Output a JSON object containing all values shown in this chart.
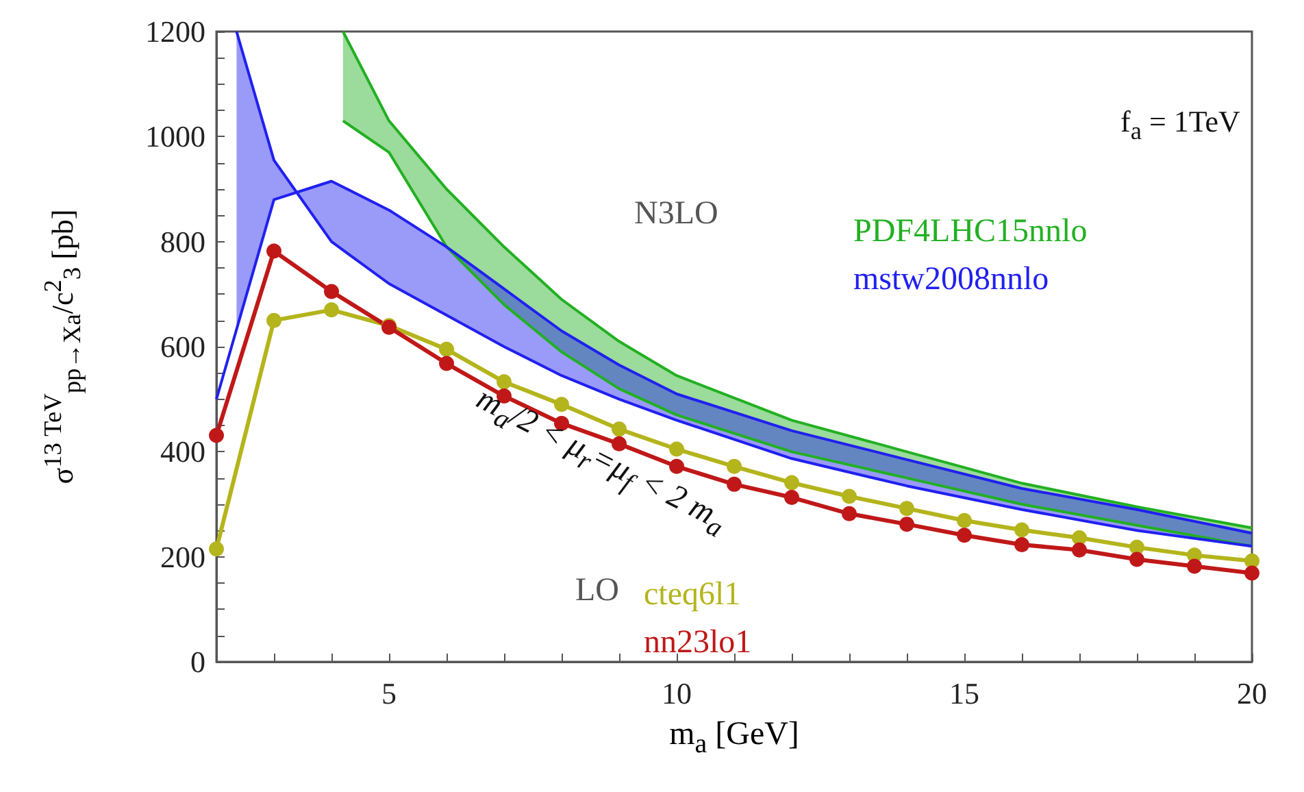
{
  "chart_data": {
    "type": "line",
    "xlabel": "m$_{a}$ [GeV]",
    "ylabel": "σ$^{13 TeV}$$_{pp→Xa}$/c$^{2}$$_{3}$ [pb]",
    "xlim": [
      2,
      20
    ],
    "ylim": [
      0,
      1200
    ],
    "xticks": [
      {
        "value": 3,
        "label": null
      },
      {
        "value": 4,
        "label": null
      },
      5,
      {
        "value": 6,
        "label": null
      },
      {
        "value": 7,
        "label": null
      },
      {
        "value": 8,
        "label": null
      },
      {
        "value": 9,
        "label": null
      },
      10,
      {
        "value": 11,
        "label": null
      },
      {
        "value": 12,
        "label": null
      },
      {
        "value": 13,
        "label": null
      },
      {
        "value": 14,
        "label": null
      },
      15,
      {
        "value": 16,
        "label": null
      },
      {
        "value": 17,
        "label": null
      },
      {
        "value": 18,
        "label": null
      },
      {
        "value": 19,
        "label": null
      },
      20
    ],
    "yticks": [
      0,
      {
        "value": 50,
        "label": null
      },
      {
        "value": 100,
        "label": null
      },
      {
        "value": 150,
        "label": null
      },
      200,
      {
        "value": 250,
        "label": null
      },
      {
        "value": 300,
        "label": null
      },
      {
        "value": 350,
        "label": null
      },
      400,
      {
        "value": 450,
        "label": null
      },
      {
        "value": 500,
        "label": null
      },
      {
        "value": 550,
        "label": null
      },
      600,
      {
        "value": 650,
        "label": null
      },
      {
        "value": 700,
        "label": null
      },
      {
        "value": 750,
        "label": null
      },
      800,
      {
        "value": 850,
        "label": null
      },
      {
        "value": 900,
        "label": null
      },
      {
        "value": 950,
        "label": null
      },
      1000,
      {
        "value": 1050,
        "label": null
      },
      {
        "value": 1100,
        "label": null
      },
      {
        "value": 1150,
        "label": null
      },
      1200
    ],
    "grid": false,
    "legend": false,
    "series": [
      {
        "name": "PDF4LHC15nnlo",
        "color": "#22b022",
        "marker": "none",
        "x": [
          4.2,
          5,
          6,
          7,
          8,
          9,
          10,
          12,
          14,
          16,
          18,
          20
        ],
        "values": [
          null,
          null,
          null,
          null,
          null,
          null,
          null,
          null,
          null,
          null,
          null,
          null
        ],
        "lower": [
          1030,
          970,
          790,
          680,
          590,
          520,
          470,
          400,
          350,
          300,
          260,
          220
        ],
        "upper": [
          1200,
          1030,
          900,
          790,
          690,
          610,
          545,
          460,
          400,
          340,
          295,
          255
        ]
      },
      {
        "name": "mstw2008nnlo",
        "color": "#2020f0",
        "marker": "none",
        "x": [
          2.35,
          3,
          4,
          5,
          6,
          7,
          8,
          9,
          10,
          12,
          14,
          16,
          18,
          20
        ],
        "values": [
          null,
          null,
          null,
          null,
          null,
          null,
          null,
          null,
          null,
          null,
          null,
          null,
          null,
          null
        ],
        "lower": [
          630,
          880,
          915,
          860,
          790,
          710,
          630,
          565,
          510,
          440,
          385,
          330,
          290,
          245
        ],
        "upper": [
          1200,
          955,
          800,
          720,
          660,
          600,
          545,
          500,
          460,
          387,
          335,
          290,
          250,
          220
        ]
      },
      {
        "color": "#22b022",
        "marker": "none",
        "x": [
          4.2,
          5,
          6,
          7,
          8,
          9,
          10,
          12,
          14,
          16,
          18,
          20
        ],
        "values": [
          1030,
          970,
          790,
          680,
          590,
          520,
          470,
          400,
          350,
          300,
          260,
          220
        ]
      },
      {
        "color": "#22b022",
        "marker": "none",
        "x": [
          4.2,
          5,
          6,
          7,
          8,
          9,
          10,
          12,
          14,
          16,
          18,
          20
        ],
        "values": [
          1200,
          1030,
          900,
          790,
          690,
          610,
          545,
          460,
          400,
          340,
          295,
          255
        ]
      },
      {
        "color": "#2020f0",
        "marker": "none",
        "x": [
          2,
          3,
          4,
          5,
          6,
          7,
          8,
          9,
          10,
          12,
          14,
          16,
          18,
          20
        ],
        "values": [
          500,
          880,
          915,
          860,
          790,
          710,
          630,
          565,
          510,
          440,
          385,
          330,
          290,
          245
        ]
      },
      {
        "color": "#2020f0",
        "marker": "none",
        "x": [
          2.35,
          3,
          4,
          5,
          6,
          7,
          8,
          9,
          10,
          12,
          14,
          16,
          18,
          20
        ],
        "values": [
          1200,
          955,
          800,
          720,
          660,
          600,
          545,
          500,
          460,
          387,
          335,
          290,
          250,
          220
        ]
      },
      {
        "name": "cteq6l1",
        "color": "#b4b41c",
        "marker": "circle",
        "x": [
          2,
          3,
          4,
          5,
          6,
          7,
          8,
          9,
          10,
          11,
          12,
          13,
          14,
          15,
          16,
          17,
          18,
          19,
          20
        ],
        "values": [
          215,
          650,
          670,
          640,
          595,
          533,
          490,
          443,
          405,
          372,
          341,
          315,
          292,
          269,
          251,
          236,
          218,
          203,
          192
        ]
      },
      {
        "name": "nn23lo1",
        "color": "#c01818",
        "marker": "circle",
        "x": [
          2,
          3,
          4,
          5,
          6,
          7,
          8,
          9,
          10,
          11,
          12,
          13,
          14,
          15,
          16,
          17,
          18,
          19,
          20
        ],
        "values": [
          431,
          782,
          705,
          637,
          568,
          506,
          454,
          415,
          372,
          338,
          313,
          282,
          262,
          241,
          223,
          213,
          195,
          182,
          169
        ]
      }
    ],
    "annotations": [
      "f$_{a}$ = 1TeV",
      "N3LO",
      "LO",
      "m$_{a}$/2 < μ$_{r}$=μ$_{f}$ < 2 m$_{a}$"
    ]
  }
}
